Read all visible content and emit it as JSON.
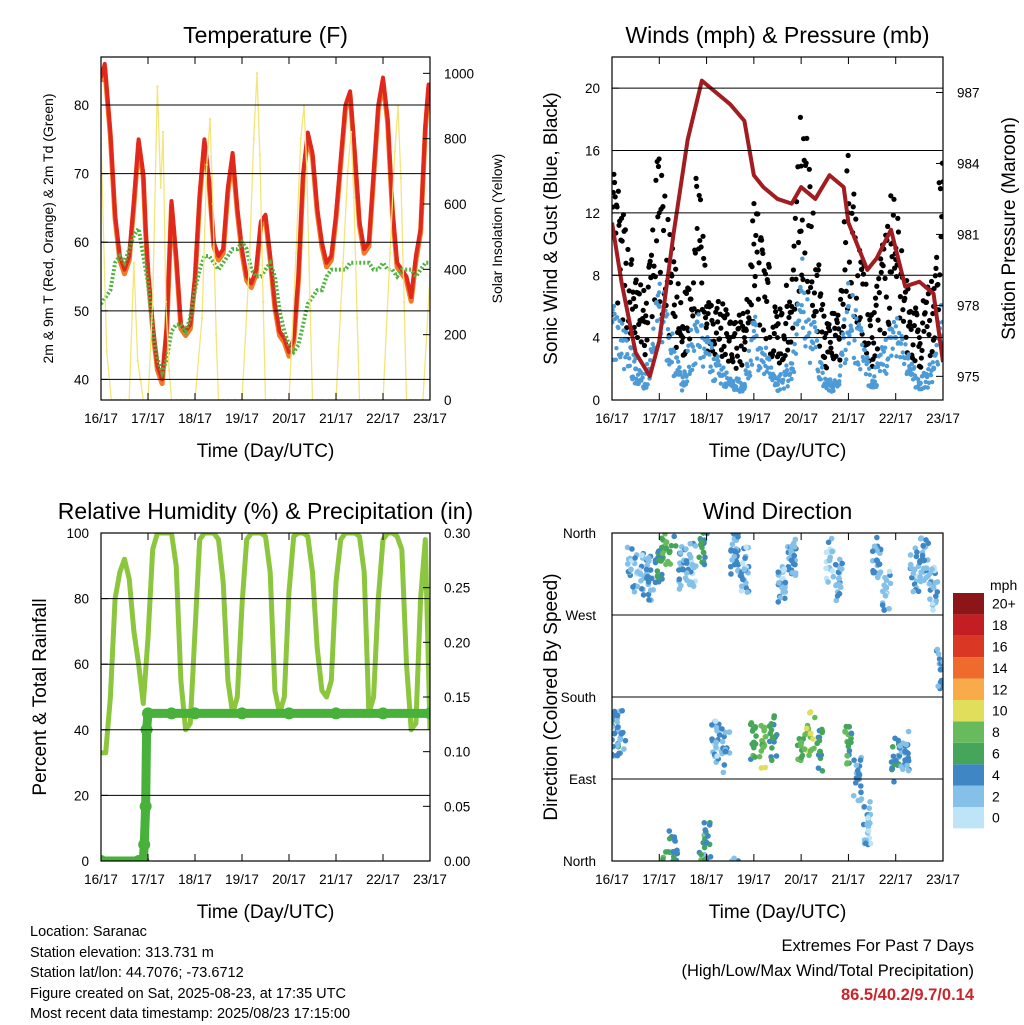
{
  "colors": {
    "temp2m": "#e0281c",
    "temp9m": "#f07a25",
    "dewpoint": "#4db33d",
    "solar": "#f4e57a",
    "wind": "#4d9bd6",
    "gust": "#000000",
    "pressure": "#a11d21",
    "rh": "#8cc63f",
    "precip": "#47b13a",
    "extremes": "#c8262b"
  },
  "x_ticks": [
    "16/17",
    "17/17",
    "18/17",
    "19/17",
    "20/17",
    "21/17",
    "22/17",
    "23/17"
  ],
  "chart_data": [
    {
      "id": "temperature",
      "type": "line",
      "title": "Temperature (F)",
      "xlabel": "Time (Day/UTC)",
      "ylabel": "2m & 9m T (Red, Orange) & 2m Td (Green)",
      "ylabel_right": "Solar Insolation (Yellow)",
      "ylim": [
        37,
        87
      ],
      "yticks": [
        40,
        50,
        60,
        70,
        80
      ],
      "ylim_right": [
        0,
        1050
      ],
      "yticks_right": [
        0,
        200,
        400,
        600,
        800,
        1000
      ],
      "grid": true,
      "series": [
        {
          "key": "temp",
          "axis": "left",
          "x": [
            0,
            0.08,
            0.2,
            0.3,
            0.4,
            0.5,
            0.6,
            0.7,
            0.8,
            0.9,
            0.95,
            1.0,
            1.1,
            1.2,
            1.3,
            1.4,
            1.5,
            1.6,
            1.7,
            1.8,
            1.9,
            2.0,
            2.1,
            2.2,
            2.3,
            2.4,
            2.5,
            2.6,
            2.7,
            2.8,
            2.9,
            3.0,
            3.1,
            3.2,
            3.3,
            3.4,
            3.5,
            3.6,
            3.7,
            3.8,
            3.9,
            4.0,
            4.1,
            4.2,
            4.3,
            4.4,
            4.5,
            4.6,
            4.7,
            4.8,
            4.9,
            5.0,
            5.1,
            5.2,
            5.3,
            5.4,
            5.5,
            5.6,
            5.7,
            5.8,
            5.9,
            6.0,
            6.1,
            6.2,
            6.3,
            6.4,
            6.5,
            6.6,
            6.7,
            6.8,
            6.9,
            6.97,
            7.0
          ],
          "y": [
            84,
            86,
            76,
            64,
            58,
            56,
            58,
            66,
            75,
            70,
            62,
            56,
            48,
            42,
            40,
            48,
            66,
            58,
            48,
            47,
            48,
            55,
            67,
            75,
            69,
            60,
            58,
            59,
            68,
            73,
            65,
            59,
            55,
            54,
            56,
            63,
            64,
            58,
            51,
            47,
            46,
            44,
            46,
            55,
            70,
            76,
            73,
            65,
            60,
            57,
            58,
            64,
            72,
            80,
            82,
            73,
            63,
            59,
            60,
            70,
            80,
            84,
            78,
            65,
            57,
            56,
            55,
            52,
            58,
            62,
            77,
            83,
            83
          ]
        },
        {
          "key": "dewpoint",
          "axis": "left",
          "x": [
            0,
            0.1,
            0.2,
            0.3,
            0.4,
            0.5,
            0.6,
            0.7,
            0.8,
            0.9,
            1.0,
            1.1,
            1.2,
            1.3,
            1.4,
            1.5,
            1.6,
            1.7,
            1.8,
            1.9,
            2.0,
            2.1,
            2.2,
            2.3,
            2.4,
            2.5,
            2.6,
            2.7,
            2.8,
            2.9,
            3.0,
            3.1,
            3.2,
            3.3,
            3.4,
            3.5,
            3.6,
            3.7,
            3.8,
            3.9,
            4.0,
            4.1,
            4.2,
            4.3,
            4.4,
            4.5,
            4.6,
            4.7,
            4.8,
            4.9,
            5.0,
            5.1,
            5.2,
            5.3,
            5.4,
            5.5,
            5.6,
            5.7,
            5.8,
            5.9,
            6.0,
            6.1,
            6.2,
            6.3,
            6.4,
            6.5,
            6.6,
            6.7,
            6.8,
            6.9,
            7.0
          ],
          "y": [
            51,
            52,
            53,
            57,
            58,
            57,
            59,
            61,
            62,
            58,
            54,
            47,
            43,
            41,
            43,
            47,
            48,
            48,
            47,
            49,
            53,
            56,
            58,
            58,
            57,
            56,
            57,
            58,
            59,
            59,
            60,
            59,
            56,
            55,
            55,
            56,
            57,
            55,
            50,
            47,
            45,
            44,
            45,
            48,
            51,
            52,
            53,
            53,
            55,
            56,
            56,
            56,
            56,
            57,
            57,
            57,
            57,
            57,
            56,
            56,
            57,
            56,
            56,
            55,
            56,
            56,
            56,
            55,
            56,
            57,
            57
          ]
        },
        {
          "key": "solar",
          "axis": "right",
          "x": [
            0,
            0.12,
            0.22,
            0.3,
            0.36,
            0.42,
            0.5,
            0.6,
            0.7,
            0.78,
            0.84,
            0.9,
            1.0,
            1.1,
            1.2,
            1.27,
            1.32,
            1.38,
            1.45,
            1.5,
            1.6,
            1.7,
            1.78,
            1.85,
            2.0,
            2.15,
            2.25,
            2.32,
            2.38,
            2.45,
            2.5,
            2.6,
            2.7,
            2.85,
            3.0,
            3.15,
            3.25,
            3.32,
            3.38,
            3.45,
            3.5,
            3.6,
            3.7,
            3.85,
            4.0,
            4.15,
            4.25,
            4.32,
            4.38,
            4.45,
            4.5,
            4.6,
            4.7,
            4.85,
            5.0,
            5.15,
            5.25,
            5.32,
            5.38,
            5.45,
            5.5,
            5.6,
            5.7,
            5.85,
            6.0,
            6.15,
            6.25,
            6.32,
            6.38,
            6.45,
            6.5,
            6.6,
            6.7,
            6.85,
            7.0
          ],
          "y": [
            800,
            150,
            0,
            0,
            0,
            0,
            0,
            0,
            420,
            120,
            60,
            0,
            0,
            300,
            960,
            650,
            820,
            300,
            90,
            0,
            0,
            0,
            0,
            0,
            0,
            250,
            720,
            860,
            600,
            200,
            0,
            0,
            0,
            0,
            0,
            400,
            800,
            1000,
            750,
            300,
            0,
            0,
            0,
            0,
            0,
            450,
            800,
            900,
            700,
            280,
            0,
            0,
            0,
            0,
            0,
            420,
            700,
            820,
            620,
            250,
            0,
            0,
            0,
            0,
            0,
            450,
            760,
            900,
            680,
            300,
            0,
            0,
            0,
            0,
            380
          ]
        }
      ]
    },
    {
      "id": "winds",
      "type": "scatter",
      "title": "Winds (mph) & Pressure (mb)",
      "xlabel": "Time (Day/UTC)",
      "ylabel": "Sonic Wind & Gust (Blue, Black)",
      "ylabel_right": "Station Pressure (Maroon)",
      "ylim": [
        0,
        22
      ],
      "yticks": [
        0,
        4,
        8,
        12,
        16,
        20
      ],
      "ylim_right": [
        974,
        988.5
      ],
      "yticks_right": [
        975,
        978,
        981,
        984,
        987
      ],
      "grid": true,
      "series": [
        {
          "key": "gust",
          "axis": "left",
          "x": [
            0,
            0.5,
            0.7,
            1.0,
            1.2,
            1.5,
            1.8,
            2.0,
            2.5,
            2.8,
            3.0,
            3.5,
            3.8,
            4.0,
            4.5,
            4.8,
            5.0,
            5.5,
            5.9,
            6.0,
            6.3,
            6.5,
            6.8,
            7.0
          ],
          "y": [
            11,
            6,
            5,
            12,
            8,
            4,
            11,
            6,
            4,
            4,
            10,
            4,
            6,
            15,
            4,
            4,
            12,
            4,
            10,
            9,
            5,
            4,
            6,
            14
          ]
        },
        {
          "key": "wind",
          "axis": "left",
          "x": [
            0,
            0.5,
            0.7,
            1.0,
            1.2,
            1.5,
            1.8,
            2.0,
            2.5,
            2.8,
            3.0,
            3.5,
            3.8,
            4.0,
            4.5,
            4.8,
            5.0,
            5.5,
            5.9,
            6.0,
            6.3,
            6.5,
            6.8,
            7.0
          ],
          "y": [
            5,
            2,
            1,
            6,
            4,
            1,
            5,
            3,
            1,
            1,
            4,
            1,
            2,
            7,
            1,
            1,
            6,
            1,
            4,
            4,
            2,
            1,
            2,
            5
          ]
        },
        {
          "key": "pressure",
          "axis": "right",
          "x": [
            0,
            0.2,
            0.5,
            0.8,
            1.0,
            1.3,
            1.6,
            1.9,
            2.2,
            2.5,
            2.8,
            3.0,
            3.2,
            3.5,
            3.8,
            4.0,
            4.3,
            4.6,
            4.9,
            5.0,
            5.2,
            5.4,
            5.6,
            5.9,
            6.2,
            6.5,
            6.8,
            7.0
          ],
          "y": [
            981.5,
            979,
            976,
            975,
            976.5,
            981,
            985,
            987.5,
            987,
            986.5,
            985.8,
            983.5,
            983,
            982.5,
            982.3,
            983,
            982.5,
            983.5,
            983,
            981.5,
            980.5,
            979.5,
            980,
            981.2,
            978.8,
            979,
            978.5,
            975.6
          ]
        }
      ]
    },
    {
      "id": "rh_precip",
      "type": "line",
      "title": "Relative Humidity (%) & Precipitation (in)",
      "xlabel": "Time (Day/UTC)",
      "ylabel": "Percent & Total Rainfall",
      "ylim": [
        0,
        100
      ],
      "yticks": [
        0,
        20,
        40,
        60,
        80,
        100
      ],
      "ylim_right": [
        0,
        0.3
      ],
      "yticks_right": [
        "0.00",
        "0.05",
        "0.10",
        "0.15",
        "0.20",
        "0.25",
        "0.30"
      ],
      "grid": true,
      "series": [
        {
          "key": "rh",
          "axis": "left",
          "x": [
            0,
            0.1,
            0.2,
            0.3,
            0.4,
            0.5,
            0.6,
            0.7,
            0.8,
            0.9,
            1.0,
            1.1,
            1.2,
            1.3,
            1.4,
            1.5,
            1.6,
            1.7,
            1.8,
            1.9,
            2.0,
            2.1,
            2.2,
            2.3,
            2.4,
            2.5,
            2.6,
            2.7,
            2.8,
            2.9,
            3.0,
            3.1,
            3.2,
            3.3,
            3.4,
            3.5,
            3.6,
            3.7,
            3.8,
            3.9,
            4.0,
            4.1,
            4.2,
            4.3,
            4.4,
            4.5,
            4.6,
            4.7,
            4.8,
            4.9,
            5.0,
            5.1,
            5.2,
            5.3,
            5.4,
            5.5,
            5.6,
            5.7,
            5.8,
            5.9,
            6.0,
            6.1,
            6.2,
            6.3,
            6.4,
            6.5,
            6.6,
            6.7,
            6.8,
            6.9,
            7.0
          ],
          "y": [
            33,
            33,
            50,
            80,
            88,
            92,
            86,
            70,
            60,
            48,
            68,
            95,
            100,
            100,
            100,
            100,
            90,
            55,
            40,
            42,
            70,
            98,
            100,
            100,
            100,
            98,
            85,
            55,
            45,
            50,
            78,
            98,
            100,
            100,
            100,
            99,
            88,
            52,
            45,
            50,
            82,
            99,
            100,
            100,
            99,
            88,
            65,
            52,
            50,
            55,
            85,
            98,
            100,
            100,
            100,
            99,
            88,
            45,
            50,
            80,
            98,
            100,
            100,
            99,
            95,
            60,
            40,
            42,
            80,
            98,
            40
          ]
        },
        {
          "key": "precip",
          "axis": "right",
          "x": [
            0,
            0.8,
            0.9,
            0.92,
            0.95,
            0.97,
            1.0,
            1.5,
            2.0,
            3.0,
            4.0,
            5.0,
            6.0,
            7.0
          ],
          "y": [
            0,
            0,
            0,
            0.015,
            0.05,
            0.12,
            0.135,
            0.135,
            0.135,
            0.135,
            0.135,
            0.135,
            0.135,
            0.135
          ]
        }
      ]
    },
    {
      "id": "wind_direction",
      "type": "scatter",
      "title": "Wind Direction",
      "xlabel": "Time (Day/UTC)",
      "ylabel": "Direction (Colored By Speed)",
      "yticks": [
        "North",
        "East",
        "South",
        "West",
        "North"
      ],
      "ylim": [
        0,
        360
      ],
      "legend_title": "mph",
      "legend_labels": [
        "0",
        "2",
        "4",
        "6",
        "8",
        "10",
        "12",
        "14",
        "16",
        "18",
        "20+"
      ],
      "legend_colors": [
        "#bde4f7",
        "#84c0e8",
        "#3e86c4",
        "#45a55a",
        "#68bb5d",
        "#e0de5a",
        "#f8ab48",
        "#ee6b2c",
        "#db3725",
        "#c31e22",
        "#8c1518"
      ],
      "series": [
        {
          "key": "direction",
          "x": [
            0.05,
            0.2,
            0.4,
            0.6,
            0.8,
            1.0,
            1.15,
            1.3,
            1.5,
            1.7,
            1.9,
            2.0,
            2.2,
            2.4,
            2.6,
            2.8,
            3.0,
            3.2,
            3.4,
            3.6,
            3.8,
            4.0,
            4.2,
            4.4,
            4.6,
            4.8,
            5.0,
            5.2,
            5.4,
            5.6,
            5.8,
            6.0,
            6.2,
            6.4,
            6.6,
            6.8,
            6.95
          ],
          "y": [
            140,
            140,
            320,
            315,
            310,
            330,
            350,
            10,
            320,
            325,
            350,
            20,
            130,
            120,
            340,
            320,
            130,
            125,
            135,
            300,
            330,
            130,
            140,
            120,
            330,
            310,
            130,
            90,
            40,
            330,
            300,
            110,
            120,
            320,
            330,
            300,
            210
          ],
          "speed": [
            4,
            3,
            2,
            2,
            3,
            5,
            7,
            4,
            3,
            2,
            6,
            4,
            2,
            3,
            3,
            2,
            6,
            8,
            5,
            2,
            3,
            7,
            9,
            5,
            2,
            2,
            6,
            3,
            2,
            3,
            2,
            4,
            3,
            2,
            3,
            2,
            3
          ]
        }
      ]
    }
  ],
  "info": {
    "location": "Location: Saranac",
    "elevation": "Station elevation: 313.731 m",
    "latlon": "Station lat/lon: 44.7076; -73.6712",
    "created": "Figure created on Sat, 2025-08-23, at 17:35 UTC",
    "latest": "Most recent data timestamp: 2025/08/23 17:15:00"
  },
  "extremes": {
    "line1": "Extremes For Past 7 Days",
    "line2": "(High/Low/Max Wind/Total Precipitation)",
    "values": "86.5/40.2/9.7/0.14"
  }
}
